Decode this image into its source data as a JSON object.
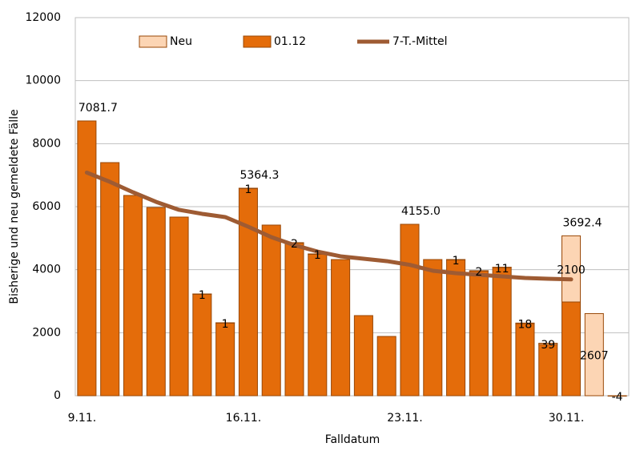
{
  "chart_data": {
    "type": "bar",
    "stacked": true,
    "x_label": "Falldatum",
    "y_label": "Bisherige und neu gemeldete  Fälle",
    "categories": [
      "9.11.",
      null,
      null,
      null,
      null,
      null,
      null,
      "16.11.",
      null,
      null,
      null,
      null,
      null,
      null,
      "23.11.",
      null,
      null,
      null,
      null,
      null,
      null,
      "30.11.",
      null,
      null
    ],
    "series": [
      {
        "name": "Neu",
        "color": "#fcd5b4",
        "stack_order": 2,
        "values": [
          null,
          null,
          null,
          null,
          null,
          1,
          1,
          1,
          null,
          2,
          1,
          null,
          null,
          null,
          null,
          null,
          1,
          2,
          11,
          18,
          39,
          2100,
          2607,
          -4
        ]
      },
      {
        "name": "01.12",
        "color": "#e46c0a",
        "stack_order": 1,
        "values": [
          8721,
          7399,
          6357,
          5975,
          5670,
          3229,
          2314,
          6585,
          5416,
          4856,
          4500,
          4322,
          2543,
          1882,
          5441,
          4322,
          4322,
          3966,
          4068,
          2288,
          1627,
          2975,
          null,
          null
        ]
      },
      {
        "name": "7-T.-Mittel",
        "color": "#9e5b33",
        "type": "line",
        "values": [
          7081.7,
          6789,
          6458,
          6153,
          5899,
          5772,
          5670,
          5364.3,
          5034,
          4780,
          4576,
          4424,
          4348,
          4272,
          4155.0,
          3966,
          3890,
          3839,
          3788,
          3738,
          3712,
          3692.4,
          null,
          null
        ],
        "value_labels": [
          "7081.7",
          null,
          null,
          null,
          null,
          null,
          null,
          "5364.3",
          null,
          null,
          null,
          null,
          null,
          null,
          "4155.0",
          null,
          null,
          null,
          null,
          null,
          null,
          "3692.4",
          null,
          null
        ]
      }
    ],
    "ylim": [
      0,
      12000
    ],
    "yticks": [
      0,
      2000,
      4000,
      6000,
      8000,
      10000,
      12000
    ],
    "grid": true,
    "legend": "top"
  }
}
